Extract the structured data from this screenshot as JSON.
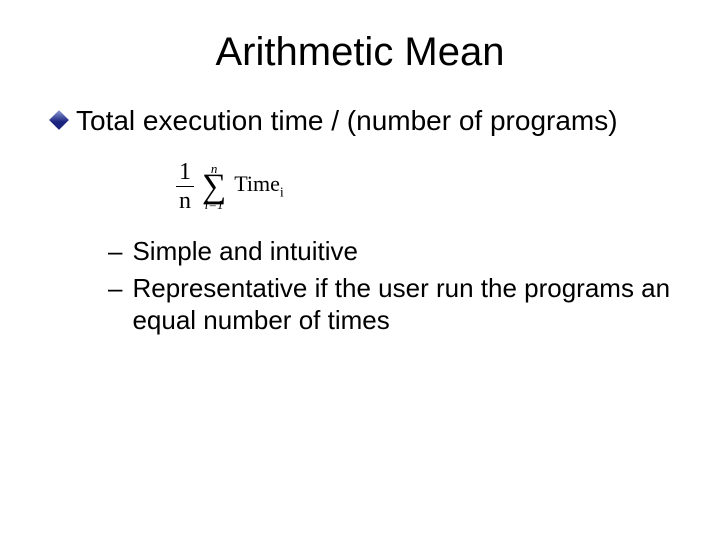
{
  "title": "Arithmetic Mean",
  "bullet": {
    "diamond_fill": "#1a237e",
    "diamond_highlight": "#8d9bd6",
    "text": "Total execution time / (number of programs)"
  },
  "formula": {
    "frac_num": "1",
    "frac_den": "n",
    "sum_upper": "n",
    "sigma": "∑",
    "sum_lower": "i=1",
    "term_main": "Time",
    "term_sub": "i"
  },
  "sub_bullets": [
    "Simple and intuitive",
    "Representative if the user run the programs an equal number of times"
  ],
  "colors": {
    "background": "#ffffff",
    "text": "#000000"
  }
}
